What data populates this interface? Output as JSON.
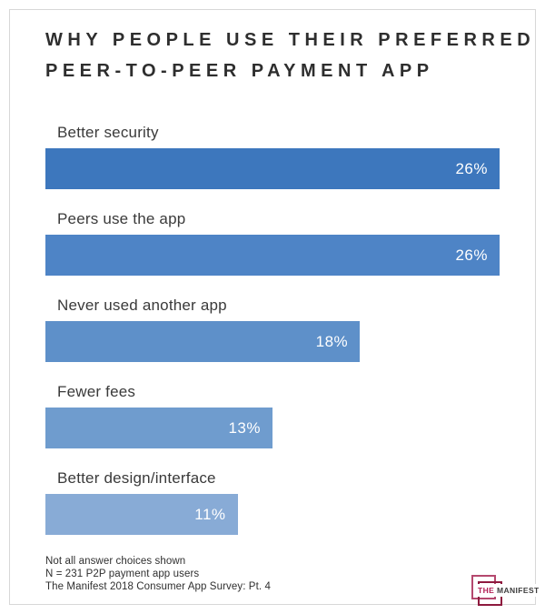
{
  "title": {
    "line1": "WHY PEOPLE USE THEIR PREFERRED",
    "line2": "PEER-TO-PEER PAYMENT APP"
  },
  "chart_data": {
    "type": "bar",
    "orientation": "horizontal",
    "title": "Why people use their preferred peer-to-peer payment app",
    "categories": [
      "Better security",
      "Peers use the app",
      "Never used another app",
      "Fewer fees",
      "Better design/interface"
    ],
    "values": [
      26,
      26,
      18,
      13,
      11
    ],
    "value_labels": [
      "26%",
      "26%",
      "18%",
      "13%",
      "11%"
    ],
    "xlim": [
      0,
      26
    ],
    "grid": false,
    "legend": false,
    "bar_colors": [
      "#3d77bd",
      "#4e84c6",
      "#5e90c9",
      "#6f9cce",
      "#88abd6"
    ],
    "value_label_color": "#ffffff",
    "value_label_position": "inside-right"
  },
  "notes": {
    "line1": "Not all answer choices shown",
    "line2": "N = 231 P2P payment app users",
    "line3": "The Manifest 2018 Consumer App Survey: Pt. 4"
  },
  "logo": {
    "the": "THE",
    "manifest": "MANIFEST",
    "accent_color": "#b11d53",
    "square_outer_color": "#b5486e",
    "square_inner_color": "#8e1a3e"
  }
}
